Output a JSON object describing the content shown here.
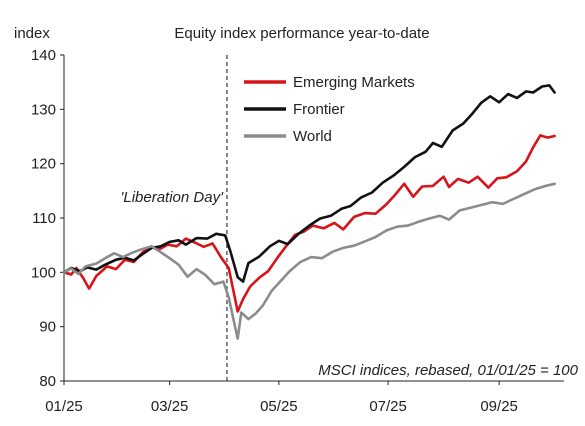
{
  "chart_data": {
    "type": "line",
    "title": "Equity index performance year-to-date",
    "ylabel": "index",
    "xlabel": "",
    "ylim": [
      80,
      140
    ],
    "yticks": [
      80,
      90,
      100,
      110,
      120,
      130,
      140
    ],
    "xlim": [
      "2025-01-01",
      "2025-10-05"
    ],
    "xticks": [
      {
        "date": "2025-01-01",
        "label": "01/25"
      },
      {
        "date": "2025-03-01",
        "label": "03/25"
      },
      {
        "date": "2025-05-01",
        "label": "05/25"
      },
      {
        "date": "2025-07-01",
        "label": "07/25"
      },
      {
        "date": "2025-09-01",
        "label": "09/25"
      }
    ],
    "grid": false,
    "legend_position": "top-right",
    "annotations": [
      {
        "text": "'Liberation Day'",
        "x": "2025-04-02"
      },
      {
        "text": "MSCI indices, rebased, 01/01/25 = 100"
      }
    ],
    "event_line": {
      "x": "2025-04-02"
    },
    "series": [
      {
        "name": "Emerging Markets",
        "color": "#d7141a",
        "points": [
          [
            "2025-01-01",
            100
          ],
          [
            "2025-01-05",
            99.6
          ],
          [
            "2025-01-08",
            100.8
          ],
          [
            "2025-01-12",
            98.8
          ],
          [
            "2025-01-15",
            97
          ],
          [
            "2025-01-19",
            99.3
          ],
          [
            "2025-01-25",
            101.1
          ],
          [
            "2025-01-30",
            100.6
          ],
          [
            "2025-02-04",
            102.3
          ],
          [
            "2025-02-09",
            101.9
          ],
          [
            "2025-02-14",
            103.7
          ],
          [
            "2025-02-19",
            104.6
          ],
          [
            "2025-02-23",
            104.2
          ],
          [
            "2025-02-28",
            105.1
          ],
          [
            "2025-03-05",
            104.8
          ],
          [
            "2025-03-10",
            106.2
          ],
          [
            "2025-03-15",
            105.5
          ],
          [
            "2025-03-20",
            104.7
          ],
          [
            "2025-03-25",
            105.3
          ],
          [
            "2025-03-30",
            102.6
          ],
          [
            "2025-04-03",
            100.8
          ],
          [
            "2025-04-06",
            96
          ],
          [
            "2025-04-08",
            92.8
          ],
          [
            "2025-04-11",
            95.1
          ],
          [
            "2025-04-15",
            97.4
          ],
          [
            "2025-04-20",
            99
          ],
          [
            "2025-04-25",
            100.2
          ],
          [
            "2025-04-30",
            102.6
          ],
          [
            "2025-05-05",
            104.8
          ],
          [
            "2025-05-10",
            106.9
          ],
          [
            "2025-05-15",
            107.5
          ],
          [
            "2025-05-20",
            108.6
          ],
          [
            "2025-05-26",
            108.1
          ],
          [
            "2025-06-01",
            109.1
          ],
          [
            "2025-06-06",
            107.9
          ],
          [
            "2025-06-12",
            110.2
          ],
          [
            "2025-06-18",
            110.9
          ],
          [
            "2025-06-24",
            110.8
          ],
          [
            "2025-06-30",
            112.5
          ],
          [
            "2025-07-05",
            114.3
          ],
          [
            "2025-07-10",
            116.3
          ],
          [
            "2025-07-15",
            113.9
          ],
          [
            "2025-07-20",
            115.8
          ],
          [
            "2025-07-26",
            115.9
          ],
          [
            "2025-08-01",
            117.6
          ],
          [
            "2025-08-04",
            115.7
          ],
          [
            "2025-08-09",
            117.2
          ],
          [
            "2025-08-15",
            116.5
          ],
          [
            "2025-08-20",
            117.6
          ],
          [
            "2025-08-26",
            115.6
          ],
          [
            "2025-08-31",
            117.3
          ],
          [
            "2025-09-05",
            117.5
          ],
          [
            "2025-09-11",
            118.6
          ],
          [
            "2025-09-16",
            120.4
          ],
          [
            "2025-09-20",
            123
          ],
          [
            "2025-09-24",
            125.2
          ],
          [
            "2025-09-28",
            124.8
          ],
          [
            "2025-10-02",
            125.1
          ]
        ]
      },
      {
        "name": "Frontier",
        "color": "#111111",
        "points": [
          [
            "2025-01-01",
            100
          ],
          [
            "2025-01-05",
            100.8
          ],
          [
            "2025-01-10",
            100.2
          ],
          [
            "2025-01-14",
            100.9
          ],
          [
            "2025-01-19",
            100.5
          ],
          [
            "2025-01-24",
            101.4
          ],
          [
            "2025-01-30",
            102.3
          ],
          [
            "2025-02-04",
            102.7
          ],
          [
            "2025-02-09",
            102.2
          ],
          [
            "2025-02-14",
            103.4
          ],
          [
            "2025-02-19",
            104.5
          ],
          [
            "2025-02-24",
            104.8
          ],
          [
            "2025-03-01",
            105.6
          ],
          [
            "2025-03-06",
            105.9
          ],
          [
            "2025-03-10",
            105.1
          ],
          [
            "2025-03-16",
            106.3
          ],
          [
            "2025-03-22",
            106.2
          ],
          [
            "2025-03-27",
            107.1
          ],
          [
            "2025-04-01",
            106.8
          ],
          [
            "2025-04-04",
            103.8
          ],
          [
            "2025-04-08",
            99.1
          ],
          [
            "2025-04-11",
            98.3
          ],
          [
            "2025-04-14",
            101.7
          ],
          [
            "2025-04-20",
            102.9
          ],
          [
            "2025-04-26",
            104.8
          ],
          [
            "2025-05-01",
            105.8
          ],
          [
            "2025-05-06",
            105.2
          ],
          [
            "2025-05-12",
            107.1
          ],
          [
            "2025-05-18",
            108.6
          ],
          [
            "2025-05-24",
            109.9
          ],
          [
            "2025-05-30",
            110.4
          ],
          [
            "2025-06-05",
            111.7
          ],
          [
            "2025-06-10",
            112.2
          ],
          [
            "2025-06-16",
            113.8
          ],
          [
            "2025-06-22",
            114.7
          ],
          [
            "2025-06-28",
            116.5
          ],
          [
            "2025-07-04",
            117.8
          ],
          [
            "2025-07-10",
            119.4
          ],
          [
            "2025-07-16",
            121.2
          ],
          [
            "2025-07-22",
            122.2
          ],
          [
            "2025-07-26",
            123.8
          ],
          [
            "2025-07-31",
            123.1
          ],
          [
            "2025-08-06",
            126.1
          ],
          [
            "2025-08-12",
            127.4
          ],
          [
            "2025-08-17",
            129.2
          ],
          [
            "2025-08-22",
            131.2
          ],
          [
            "2025-08-27",
            132.4
          ],
          [
            "2025-09-01",
            131.3
          ],
          [
            "2025-09-06",
            132.8
          ],
          [
            "2025-09-11",
            132.1
          ],
          [
            "2025-09-16",
            133.3
          ],
          [
            "2025-09-20",
            133.1
          ],
          [
            "2025-09-25",
            134.2
          ],
          [
            "2025-09-29",
            134.4
          ],
          [
            "2025-10-02",
            133.1
          ]
        ]
      },
      {
        "name": "World",
        "color": "#8c8c8c",
        "points": [
          [
            "2025-01-01",
            100
          ],
          [
            "2025-01-05",
            100.7
          ],
          [
            "2025-01-09",
            99.7
          ],
          [
            "2025-01-13",
            101.1
          ],
          [
            "2025-01-19",
            101.6
          ],
          [
            "2025-01-24",
            102.6
          ],
          [
            "2025-01-29",
            103.5
          ],
          [
            "2025-02-03",
            102.8
          ],
          [
            "2025-02-08",
            103.6
          ],
          [
            "2025-02-13",
            104.2
          ],
          [
            "2025-02-19",
            104.8
          ],
          [
            "2025-02-24",
            103.7
          ],
          [
            "2025-03-01",
            102.6
          ],
          [
            "2025-03-06",
            101.4
          ],
          [
            "2025-03-11",
            99.2
          ],
          [
            "2025-03-16",
            100.6
          ],
          [
            "2025-03-21",
            99.5
          ],
          [
            "2025-03-26",
            97.8
          ],
          [
            "2025-03-31",
            98.3
          ],
          [
            "2025-04-03",
            95.4
          ],
          [
            "2025-04-06",
            90.8
          ],
          [
            "2025-04-08",
            87.8
          ],
          [
            "2025-04-10",
            92.6
          ],
          [
            "2025-04-14",
            91.4
          ],
          [
            "2025-04-18",
            92.4
          ],
          [
            "2025-04-22",
            93.9
          ],
          [
            "2025-04-27",
            96.6
          ],
          [
            "2025-05-02",
            98.4
          ],
          [
            "2025-05-07",
            100.2
          ],
          [
            "2025-05-13",
            101.9
          ],
          [
            "2025-05-19",
            102.8
          ],
          [
            "2025-05-25",
            102.6
          ],
          [
            "2025-05-31",
            103.8
          ],
          [
            "2025-06-06",
            104.5
          ],
          [
            "2025-06-12",
            104.9
          ],
          [
            "2025-06-18",
            105.7
          ],
          [
            "2025-06-24",
            106.5
          ],
          [
            "2025-06-30",
            107.7
          ],
          [
            "2025-07-06",
            108.4
          ],
          [
            "2025-07-12",
            108.6
          ],
          [
            "2025-07-18",
            109.3
          ],
          [
            "2025-07-24",
            109.9
          ],
          [
            "2025-07-30",
            110.4
          ],
          [
            "2025-08-04",
            109.7
          ],
          [
            "2025-08-10",
            111.4
          ],
          [
            "2025-08-16",
            111.9
          ],
          [
            "2025-08-22",
            112.4
          ],
          [
            "2025-08-28",
            112.9
          ],
          [
            "2025-09-03",
            112.6
          ],
          [
            "2025-09-09",
            113.5
          ],
          [
            "2025-09-15",
            114.4
          ],
          [
            "2025-09-21",
            115.3
          ],
          [
            "2025-09-27",
            115.9
          ],
          [
            "2025-10-02",
            116.3
          ]
        ]
      }
    ]
  }
}
